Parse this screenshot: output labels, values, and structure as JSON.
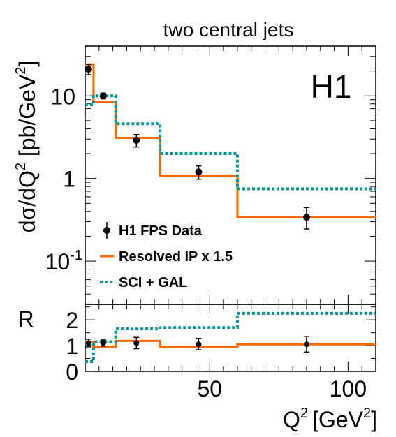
{
  "chart_data": [
    {
      "type": "step",
      "title": "two central jets",
      "label": "H1",
      "xlabel": {
        "base": "Q",
        "sup": "2",
        "unit": "[GeV",
        "unit_sup": "2",
        "unit_close": "]"
      },
      "ylabel": {
        "a": "dσ/dQ",
        "sup1": "2",
        "b": " [pb/GeV",
        "sup2": "2",
        "c": "]"
      },
      "yscale": "log",
      "xlim": [
        5,
        110
      ],
      "ylim": [
        0.03,
        40
      ],
      "yticks": [
        {
          "value": 0.1,
          "label": "10",
          "sup": "-1"
        },
        {
          "value": 1,
          "label": "1",
          "sup": ""
        },
        {
          "value": 10,
          "label": "10",
          "sup": ""
        }
      ],
      "legend": {
        "placement": "bottom-left",
        "entries": [
          "H1 FPS Data",
          "Resolved IP x 1.5",
          "SCI + GAL"
        ]
      },
      "data_points": {
        "name": "H1 FPS Data",
        "x": [
          6.2,
          11.5,
          23.5,
          46,
          85
        ],
        "y": [
          21,
          10,
          2.9,
          1.2,
          0.34
        ],
        "err_low": [
          18,
          9.2,
          2.4,
          0.98,
          0.245
        ],
        "err_high": [
          24,
          10.8,
          3.4,
          1.42,
          0.445
        ]
      },
      "series": [
        {
          "name": "Resolved IP x 1.5",
          "color": "#ff6600",
          "style": "solid",
          "edges": [
            5,
            8,
            16,
            32,
            60,
            110
          ],
          "values": [
            24,
            8.5,
            3.1,
            1.08,
            0.34
          ]
        },
        {
          "name": "SCI + GAL",
          "color": "#009999",
          "style": "dotted",
          "edges": [
            5,
            8,
            16,
            32,
            60,
            110
          ],
          "values": [
            7.8,
            10,
            4.6,
            2.0,
            0.75
          ]
        }
      ]
    },
    {
      "type": "step",
      "ylabel": "R",
      "xlim": [
        5,
        110
      ],
      "ylim": [
        0,
        2.6
      ],
      "xticks": [
        50,
        100
      ],
      "yticks": [
        0,
        1,
        2
      ],
      "data_points": {
        "x": [
          6.2,
          11.5,
          23.5,
          46,
          85
        ],
        "y": [
          1.1,
          1.1,
          1.1,
          1.05,
          1.05
        ],
        "err_low": [
          0.95,
          0.98,
          0.88,
          0.84,
          0.75
        ],
        "err_high": [
          1.25,
          1.22,
          1.32,
          1.28,
          1.36
        ]
      },
      "series": [
        {
          "name": "Resolved IP x 1.5",
          "color": "#ff6600",
          "style": "solid",
          "edges": [
            5,
            8,
            16,
            32,
            60,
            110
          ],
          "values": [
            1.15,
            0.95,
            1.18,
            0.95,
            1.05
          ]
        },
        {
          "name": "SCI + GAL",
          "color": "#009999",
          "style": "dotted",
          "edges": [
            5,
            8,
            16,
            32,
            60,
            110
          ],
          "values": [
            0.38,
            1.15,
            1.65,
            1.7,
            2.25
          ]
        }
      ]
    }
  ]
}
